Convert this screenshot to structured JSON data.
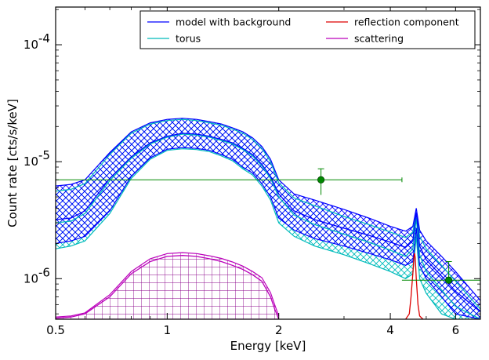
{
  "chart_data": {
    "type": "line",
    "xlabel": "Energy [keV]",
    "ylabel": "Count rate [cts/s/keV]",
    "xscale": "log",
    "yscale": "log",
    "xlim": [
      0.5,
      7.0
    ],
    "ylim": [
      4.5e-07,
      0.00021
    ],
    "xticks": [
      {
        "value": 0.5,
        "label": "0.5"
      },
      {
        "value": 1,
        "label": "1"
      },
      {
        "value": 2,
        "label": "2"
      },
      {
        "value": 4,
        "label": "4"
      },
      {
        "value": 6,
        "label": "6"
      }
    ],
    "yticks": [
      {
        "value": 1e-06,
        "base": "10",
        "exp": "-6"
      },
      {
        "value": 1e-05,
        "base": "10",
        "exp": "-5"
      },
      {
        "value": 0.0001,
        "base": "10",
        "exp": "-4"
      }
    ],
    "legend": {
      "placement": "top-right",
      "entries": [
        {
          "label": "model with background",
          "color": "#0000ff"
        },
        {
          "label": "reflection component",
          "color": "#dd0000"
        },
        {
          "label": "torus",
          "color": "#00bbbb"
        },
        {
          "label": "scattering",
          "color": "#bb00bb"
        }
      ]
    },
    "series": [
      {
        "name": "model with background",
        "color": "#0000ff",
        "x": [
          0.5,
          0.55,
          0.6,
          0.7,
          0.8,
          0.9,
          1.0,
          1.1,
          1.2,
          1.3,
          1.4,
          1.5,
          1.6,
          1.7,
          1.8,
          1.9,
          2.0,
          2.2,
          2.5,
          3.0,
          3.5,
          4.0,
          4.4,
          4.6,
          4.7,
          4.8,
          5.0,
          5.5,
          6.0,
          7.0
        ],
        "y": [
          3.2e-06,
          3.3e-06,
          3.8e-06,
          7.2e-06,
          1.1e-05,
          1.45e-05,
          1.65e-05,
          1.75e-05,
          1.72e-05,
          1.65e-05,
          1.55e-05,
          1.45e-05,
          1.3e-05,
          1.15e-05,
          9.5e-06,
          7.5e-06,
          5.3e-06,
          3.8e-06,
          3.2e-06,
          2.7e-06,
          2.35e-06,
          2.05e-06,
          1.85e-06,
          2.1e-06,
          3.7e-06,
          1.9e-06,
          1.45e-06,
          1.05e-06,
          7.8e-07,
          5.2e-07
        ],
        "upper": [
          6.2e-06,
          6.4e-06,
          7e-06,
          1.2e-05,
          1.8e-05,
          2.15e-05,
          2.3e-05,
          2.35e-05,
          2.3e-05,
          2.2e-05,
          2.1e-05,
          1.95e-05,
          1.8e-05,
          1.6e-05,
          1.35e-05,
          1.05e-05,
          7e-06,
          5.3e-06,
          4.7e-06,
          3.9e-06,
          3.3e-06,
          2.8e-06,
          2.55e-06,
          2.8e-06,
          4e-06,
          2.6e-06,
          2.1e-06,
          1.55e-06,
          1.15e-06,
          6.5e-07
        ],
        "lower": [
          2e-06,
          2.1e-06,
          2.3e-06,
          3.8e-06,
          7.5e-06,
          1.08e-05,
          1.28e-05,
          1.32e-05,
          1.3e-05,
          1.25e-05,
          1.15e-05,
          1.05e-05,
          9e-06,
          8e-06,
          6.5e-06,
          5e-06,
          3.3e-06,
          2.6e-06,
          2.2e-06,
          1.9e-06,
          1.65e-06,
          1.45e-06,
          1.3e-06,
          1.4e-06,
          2.7e-06,
          1.3e-06,
          1e-06,
          7e-07,
          5e-07,
          4.5e-07
        ]
      },
      {
        "name": "torus",
        "color": "#00bbbb",
        "x": [
          0.5,
          0.55,
          0.6,
          0.7,
          0.8,
          0.9,
          1.0,
          1.1,
          1.2,
          1.3,
          1.4,
          1.5,
          1.6,
          1.7,
          1.8,
          1.9,
          2.0,
          2.2,
          2.5,
          3.0,
          3.5,
          4.0,
          4.4,
          4.6,
          4.7,
          4.8,
          5.0,
          5.5,
          6.0,
          7.0
        ],
        "y": [
          3e-06,
          3.1e-06,
          3.6e-06,
          6.9e-06,
          1.07e-05,
          1.42e-05,
          1.62e-05,
          1.72e-05,
          1.69e-05,
          1.62e-05,
          1.52e-05,
          1.42e-05,
          1.27e-05,
          1.12e-05,
          9.2e-06,
          7.2e-06,
          5e-06,
          3.5e-06,
          2.9e-06,
          2.4e-06,
          2.05e-06,
          1.75e-06,
          1.55e-06,
          1.8e-06,
          3.3e-06,
          1.6e-06,
          1.15e-06,
          8e-07,
          5.8e-07,
          4.5e-07
        ],
        "upper": [
          5.6e-06,
          5.8e-06,
          6.5e-06,
          1.15e-05,
          1.75e-05,
          2.1e-05,
          2.25e-05,
          2.3e-05,
          2.25e-05,
          2.15e-05,
          2.05e-05,
          1.9e-05,
          1.75e-05,
          1.55e-05,
          1.3e-05,
          1e-05,
          6.6e-06,
          4.9e-06,
          4.2e-06,
          3.4e-06,
          2.9e-06,
          2.5e-06,
          2.25e-06,
          2.5e-06,
          3.7e-06,
          2.3e-06,
          1.8e-06,
          1.3e-06,
          9.5e-07,
          5.5e-07
        ],
        "lower": [
          1.8e-06,
          1.9e-06,
          2.1e-06,
          3.6e-06,
          7.2e-06,
          1.05e-05,
          1.25e-05,
          1.29e-05,
          1.27e-05,
          1.22e-05,
          1.12e-05,
          1.02e-05,
          8.7e-06,
          7.7e-06,
          6.2e-06,
          4.7e-06,
          3e-06,
          2.3e-06,
          1.9e-06,
          1.6e-06,
          1.35e-06,
          1.15e-06,
          1e-06,
          1.1e-06,
          2.3e-06,
          1e-06,
          7.5e-07,
          5e-07,
          4.5e-07,
          4.5e-07
        ]
      },
      {
        "name": "reflection component",
        "color": "#dd0000",
        "x": [
          4.4,
          4.5,
          4.55,
          4.6,
          4.63,
          4.65,
          4.67,
          4.7,
          4.75,
          4.8,
          4.9
        ],
        "y": [
          4.5e-07,
          5e-07,
          7e-07,
          1.1e-06,
          1.5e-06,
          1.65e-06,
          1.5e-06,
          1e-06,
          6e-07,
          4.8e-07,
          4.5e-07
        ]
      },
      {
        "name": "scattering",
        "color": "#bb00bb",
        "x": [
          0.5,
          0.55,
          0.6,
          0.7,
          0.8,
          0.9,
          1.0,
          1.1,
          1.2,
          1.3,
          1.4,
          1.5,
          1.6,
          1.7,
          1.8,
          1.9,
          1.95,
          2.0
        ],
        "y": [
          4.6e-07,
          4.7e-07,
          5e-07,
          7e-07,
          1.1e-06,
          1.4e-06,
          1.55e-06,
          1.58e-06,
          1.55e-06,
          1.48e-06,
          1.4e-06,
          1.3e-06,
          1.2e-06,
          1.08e-06,
          9.5e-07,
          7e-07,
          5.5e-07,
          4.5e-07
        ],
        "upper": [
          4.7e-07,
          4.8e-07,
          5.1e-07,
          7.3e-07,
          1.15e-06,
          1.48e-06,
          1.64e-06,
          1.67e-06,
          1.64e-06,
          1.57e-06,
          1.49e-06,
          1.39e-06,
          1.28e-06,
          1.15e-06,
          1.02e-06,
          7.6e-07,
          6e-07,
          4.8e-07
        ],
        "lower": [
          4.5e-07,
          4.5e-07,
          4.5e-07,
          4.5e-07,
          4.5e-07,
          4.5e-07,
          4.5e-07,
          4.5e-07,
          4.5e-07,
          4.5e-07,
          4.5e-07,
          4.5e-07,
          4.5e-07,
          4.5e-07,
          4.5e-07,
          4.5e-07,
          4.5e-07,
          4.5e-07
        ]
      }
    ],
    "data_points": {
      "color": "#008800",
      "points": [
        {
          "x": 2.6,
          "y": 7e-06,
          "xerr": [
            0.5,
            4.3
          ],
          "yerr": [
            5.2e-06,
            8.7e-06
          ]
        },
        {
          "x": 5.75,
          "y": 9.7e-07,
          "xerr": [
            4.3,
            7.0
          ],
          "yerr": [
            9.7e-07,
            1.4e-06
          ]
        }
      ]
    }
  }
}
